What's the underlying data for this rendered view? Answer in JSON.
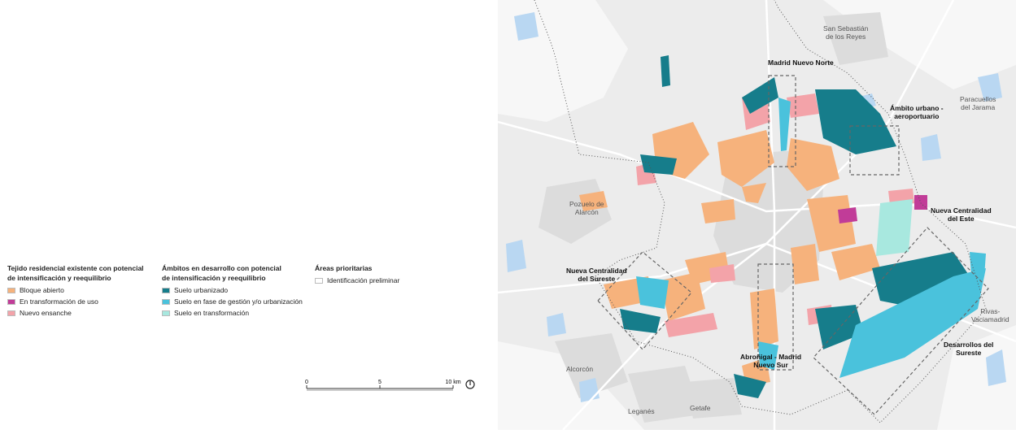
{
  "legend": {
    "groups": [
      {
        "title": [
          "Tejido residencial existente con potencial",
          "de intensificación y reequilibrio"
        ],
        "items": [
          {
            "label": "Bloque abierto",
            "color": "#f6b27c"
          },
          {
            "label": "En transformación de uso",
            "color": "#c13c98"
          },
          {
            "label": "Nuevo ensanche",
            "color": "#f3a3a9"
          }
        ]
      },
      {
        "title": [
          "Ámbitos en desarrollo con potencial",
          "de intensificación y reequilibrio"
        ],
        "items": [
          {
            "label": "Suelo urbanizado",
            "color": "#167d8b"
          },
          {
            "label": "Suelo en fase de gestión y/o urbanización",
            "color": "#4ac2dc"
          },
          {
            "label": "Suelo en transformación",
            "color": "#a8e8df"
          }
        ]
      },
      {
        "title": [
          "Áreas prioritarias"
        ],
        "items": [
          {
            "label": "Identificación preliminar",
            "color": "#ffffff"
          }
        ]
      }
    ]
  },
  "scale_bar": {
    "labels": [
      "0",
      "5",
      "10 km"
    ]
  },
  "map": {
    "place_labels": [
      [
        "San Sebastián",
        "de los Reyes"
      ],
      [
        "Paracuellos",
        "del Jarama"
      ],
      [
        "Pozuelo de",
        "Alarcón"
      ],
      [
        "Alcorcón"
      ],
      [
        "Leganés"
      ],
      [
        "Getafe"
      ],
      [
        "Rivas-",
        "Vaciamadrid"
      ]
    ],
    "area_labels": [
      [
        "Madrid Nuevo Norte"
      ],
      [
        "Ámbito urbano -",
        "aeroportuario"
      ],
      [
        "Nueva Centralidad",
        "del Este"
      ],
      [
        "Nueva Centralidad",
        "del Sureste"
      ],
      [
        "Abroñigal - Madrid",
        "Nuevo Sur"
      ],
      [
        "Desarrollos del",
        "Sureste"
      ]
    ]
  }
}
